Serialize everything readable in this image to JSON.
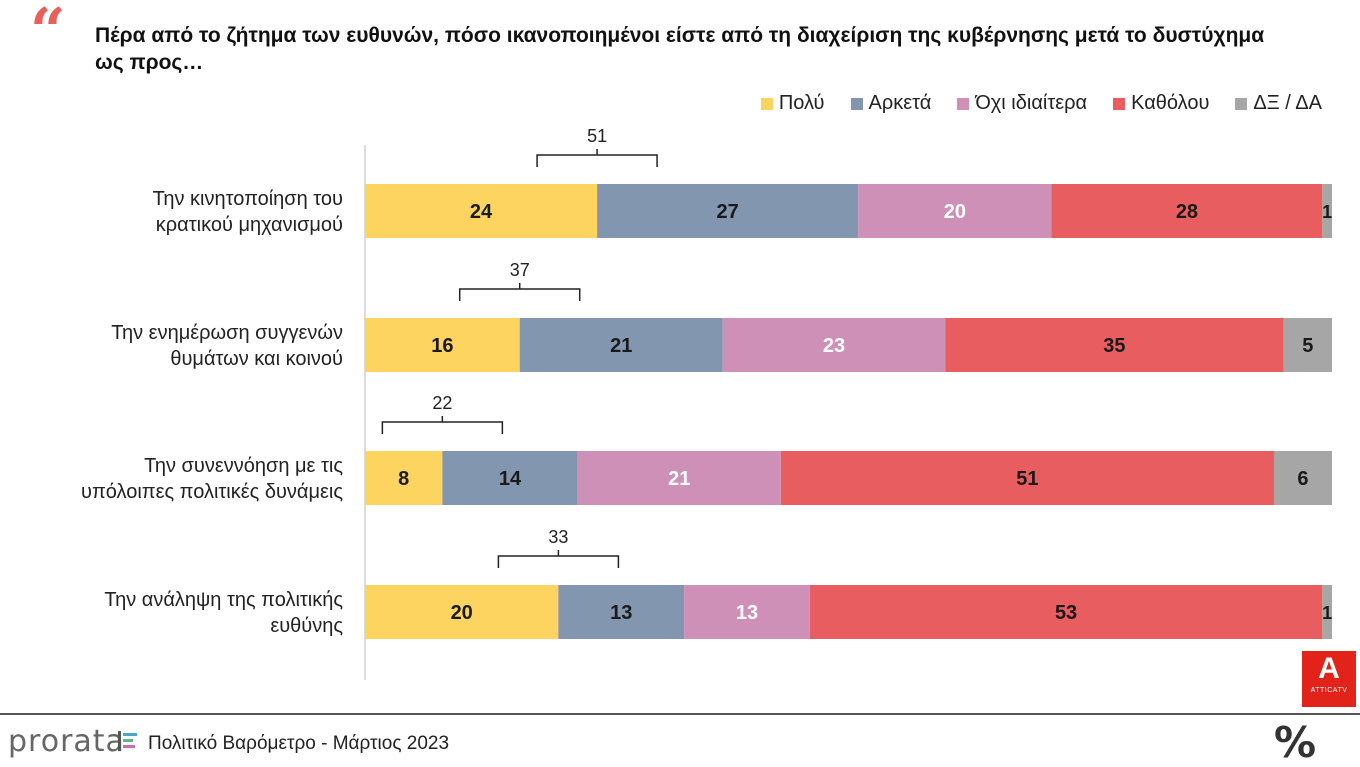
{
  "header": {
    "quote_icon": "quote-icon",
    "title": "Πέρα από το ζήτημα των ευθυνών, πόσο ικανοποιημένοι είστε από τη διαχείριση της κυβέρνησης μετά το δυστύχημα ως προς…"
  },
  "colors": {
    "polu": "#fdd45f",
    "arketa": "#8396b0",
    "oxi": "#cf90b8",
    "katholou": "#e85d5f",
    "dxda": "#a6a6a6",
    "accent": "#e8605c"
  },
  "chart_data": {
    "type": "bar",
    "orientation": "horizontal-stacked-100",
    "title": "Πέρα από το ζήτημα των ευθυνών, πόσο ικανοποιημένοι είστε από τη διαχείριση της κυβέρνησης μετά το δυστύχημα ως προς…",
    "categories": [
      [
        "Την κινητοποίηση του",
        "κρατικού μηχανισμού"
      ],
      [
        "Την ενημέρωση συγγενών",
        "θυμάτων και κοινού"
      ],
      [
        "Την συνεννόηση με τις",
        "υπόλοιπες πολιτικές δυνάμεις"
      ],
      [
        "Την ανάληψη της πολιτικής",
        "ευθύνης"
      ]
    ],
    "series": [
      {
        "name": "Πολύ",
        "color": "#fdd45f",
        "label_color": "#1a1a1a",
        "values": [
          24,
          16,
          8,
          20
        ]
      },
      {
        "name": "Αρκετά",
        "color": "#8396b0",
        "label_color": "#1a1a1a",
        "values": [
          27,
          21,
          14,
          13
        ]
      },
      {
        "name": "Όχι ιδιαίτερα",
        "color": "#cf90b8",
        "label_color": "#ffffff",
        "values": [
          20,
          23,
          21,
          13
        ]
      },
      {
        "name": "Καθόλου",
        "color": "#e85d5f",
        "label_color": "#1a1a1a",
        "values": [
          28,
          35,
          51,
          53
        ]
      },
      {
        "name": "ΔΞ / ΔΑ",
        "color": "#a6a6a6",
        "label_color": "#1a1a1a",
        "values": [
          1,
          5,
          6,
          1
        ]
      }
    ],
    "bracket_totals": [
      51,
      37,
      22,
      33
    ],
    "xlim": [
      0,
      100
    ],
    "legend_position": "top-right"
  },
  "footer": {
    "brand": "prorata",
    "brand_icon": "bars-icon",
    "text": "Πολιτικό Βαρόμετρο - Μάρτιος 2023",
    "percent_logo": "%",
    "tv_logo_letter": "A",
    "tv_logo_text": "ATTICATV"
  }
}
